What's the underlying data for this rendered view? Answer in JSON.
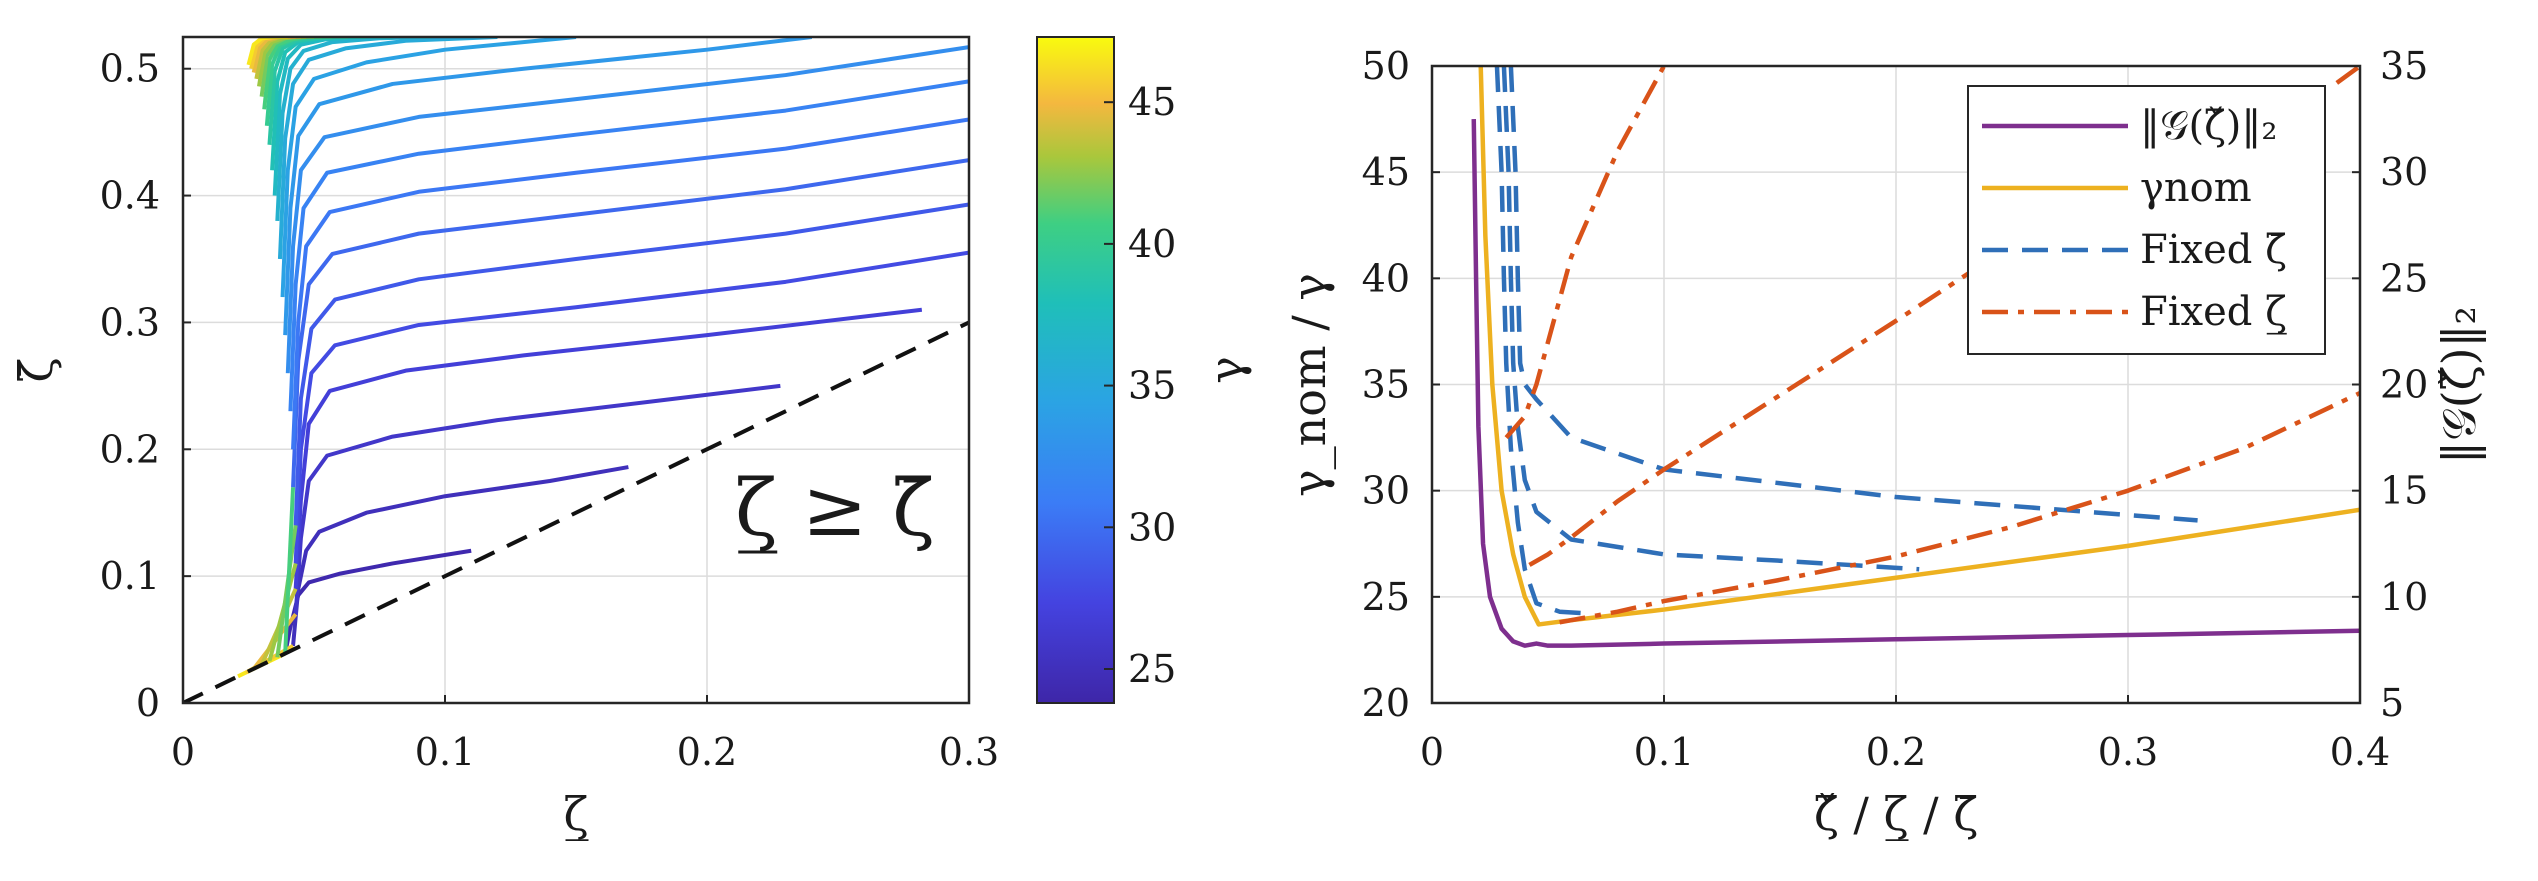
{
  "chart_data": [
    {
      "type": "line",
      "xlabel": "ζ̲",
      "ylabel": "ζ̄",
      "xlim": [
        0,
        0.3
      ],
      "ylim": [
        0,
        0.525
      ],
      "xticks": [
        0,
        0.1,
        0.2,
        0.3
      ],
      "yticks": [
        0,
        0.1,
        0.2,
        0.3,
        0.4,
        0.5
      ],
      "xtick_labels": [
        "0",
        "0.1",
        "0.2",
        "0.3"
      ],
      "ytick_labels": [
        "0",
        "0.1",
        "0.2",
        "0.3",
        "0.4",
        "0.5"
      ],
      "grid": true,
      "annotation": "ζ̲ ≥ ζ̄",
      "boundary_line": {
        "x": [
          0,
          0.3
        ],
        "y": [
          0,
          0.3
        ],
        "style": "dashed",
        "color": "#111111"
      },
      "colorbar": {
        "label": "γ",
        "range": [
          23.8,
          47.3
        ],
        "ticks": [
          25,
          30,
          35,
          40,
          45
        ],
        "tick_labels": [
          "25",
          "30",
          "35",
          "40",
          "45"
        ]
      },
      "series": [
        {
          "gamma": 24.2,
          "x": [
            0.039,
            0.041,
            0.044,
            0.048,
            0.06,
            0.08,
            0.11
          ],
          "y": [
            0.039,
            0.06,
            0.085,
            0.095,
            0.102,
            0.11,
            0.12
          ]
        },
        {
          "gamma": 25.0,
          "x": [
            0.042,
            0.044,
            0.047,
            0.052,
            0.07,
            0.1,
            0.14,
            0.17
          ],
          "y": [
            0.045,
            0.09,
            0.12,
            0.135,
            0.15,
            0.163,
            0.175,
            0.186
          ]
        },
        {
          "gamma": 25.9,
          "x": [
            0.043,
            0.045,
            0.048,
            0.055,
            0.08,
            0.12,
            0.18,
            0.228
          ],
          "y": [
            0.07,
            0.13,
            0.175,
            0.195,
            0.21,
            0.223,
            0.238,
            0.25
          ]
        },
        {
          "gamma": 26.8,
          "x": [
            0.043,
            0.045,
            0.048,
            0.056,
            0.085,
            0.13,
            0.2,
            0.282
          ],
          "y": [
            0.09,
            0.16,
            0.22,
            0.246,
            0.262,
            0.274,
            0.29,
            0.31
          ]
        },
        {
          "gamma": 27.8,
          "x": [
            0.043,
            0.045,
            0.049,
            0.058,
            0.09,
            0.15,
            0.23,
            0.3
          ],
          "y": [
            0.11,
            0.2,
            0.26,
            0.282,
            0.298,
            0.312,
            0.332,
            0.355
          ]
        },
        {
          "gamma": 28.7,
          "x": [
            0.043,
            0.045,
            0.049,
            0.058,
            0.09,
            0.15,
            0.23,
            0.3
          ],
          "y": [
            0.14,
            0.24,
            0.295,
            0.318,
            0.334,
            0.35,
            0.37,
            0.393
          ]
        },
        {
          "gamma": 29.6,
          "x": [
            0.042,
            0.044,
            0.048,
            0.057,
            0.09,
            0.15,
            0.23,
            0.3
          ],
          "y": [
            0.17,
            0.27,
            0.33,
            0.354,
            0.37,
            0.385,
            0.405,
            0.428
          ]
        },
        {
          "gamma": 30.6,
          "x": [
            0.042,
            0.044,
            0.047,
            0.056,
            0.09,
            0.15,
            0.23,
            0.3
          ],
          "y": [
            0.2,
            0.3,
            0.36,
            0.387,
            0.403,
            0.418,
            0.437,
            0.46
          ]
        },
        {
          "gamma": 31.5,
          "x": [
            0.041,
            0.043,
            0.046,
            0.055,
            0.09,
            0.15,
            0.23,
            0.3
          ],
          "y": [
            0.23,
            0.33,
            0.39,
            0.418,
            0.433,
            0.448,
            0.467,
            0.49
          ]
        },
        {
          "gamma": 32.5,
          "x": [
            0.04,
            0.042,
            0.045,
            0.054,
            0.09,
            0.15,
            0.23,
            0.3
          ],
          "y": [
            0.26,
            0.36,
            0.42,
            0.446,
            0.462,
            0.476,
            0.495,
            0.517
          ]
        },
        {
          "gamma": 33.4,
          "x": [
            0.039,
            0.041,
            0.044,
            0.052,
            0.08,
            0.13,
            0.2,
            0.24
          ],
          "y": [
            0.29,
            0.39,
            0.447,
            0.472,
            0.488,
            0.5,
            0.515,
            0.525
          ]
        },
        {
          "gamma": 34.3,
          "x": [
            0.038,
            0.04,
            0.043,
            0.05,
            0.07,
            0.1,
            0.15
          ],
          "y": [
            0.32,
            0.42,
            0.47,
            0.492,
            0.505,
            0.515,
            0.525
          ]
        },
        {
          "gamma": 35.3,
          "x": [
            0.037,
            0.039,
            0.042,
            0.048,
            0.062,
            0.085,
            0.12
          ],
          "y": [
            0.35,
            0.445,
            0.488,
            0.507,
            0.516,
            0.522,
            0.525
          ]
        },
        {
          "gamma": 36.2,
          "x": [
            0.036,
            0.038,
            0.041,
            0.046,
            0.057,
            0.075,
            0.095
          ],
          "y": [
            0.38,
            0.465,
            0.5,
            0.514,
            0.521,
            0.524,
            0.525
          ]
        },
        {
          "gamma": 37.2,
          "x": [
            0.035,
            0.037,
            0.04,
            0.045,
            0.054,
            0.068,
            0.08
          ],
          "y": [
            0.4,
            0.48,
            0.508,
            0.519,
            0.523,
            0.525,
            0.525
          ]
        },
        {
          "gamma": 38.1,
          "x": [
            0.034,
            0.036,
            0.039,
            0.044,
            0.052,
            0.062,
            0.07
          ],
          "y": [
            0.42,
            0.49,
            0.513,
            0.521,
            0.524,
            0.525,
            0.525
          ]
        },
        {
          "gamma": 39.0,
          "x": [
            0.033,
            0.035,
            0.038,
            0.043,
            0.05,
            0.058,
            0.063
          ],
          "y": [
            0.44,
            0.498,
            0.516,
            0.522,
            0.524,
            0.525,
            0.525
          ]
        },
        {
          "gamma": 40.0,
          "x": [
            0.032,
            0.034,
            0.037,
            0.042,
            0.048,
            0.054,
            0.057
          ],
          "y": [
            0.455,
            0.503,
            0.518,
            0.523,
            0.525,
            0.525,
            0.525
          ]
        },
        {
          "gamma": 40.9,
          "x": [
            0.031,
            0.033,
            0.036,
            0.041,
            0.046,
            0.051,
            0.053
          ],
          "y": [
            0.468,
            0.507,
            0.519,
            0.523,
            0.525,
            0.525,
            0.525
          ]
        },
        {
          "gamma": 41.9,
          "x": [
            0.03,
            0.032,
            0.035,
            0.039,
            0.044,
            0.048,
            0.05
          ],
          "y": [
            0.478,
            0.51,
            0.52,
            0.524,
            0.525,
            0.525,
            0.525
          ]
        },
        {
          "gamma": 42.8,
          "x": [
            0.029,
            0.031,
            0.034,
            0.038,
            0.042,
            0.046,
            0.047
          ],
          "y": [
            0.486,
            0.512,
            0.521,
            0.524,
            0.525,
            0.525,
            0.525
          ]
        },
        {
          "gamma": 43.7,
          "x": [
            0.028,
            0.03,
            0.033,
            0.037,
            0.041,
            0.044,
            0.045
          ],
          "y": [
            0.492,
            0.514,
            0.522,
            0.525,
            0.525,
            0.525,
            0.525
          ]
        },
        {
          "gamma": 44.7,
          "x": [
            0.027,
            0.029,
            0.032,
            0.036,
            0.04,
            0.042,
            0.043
          ],
          "y": [
            0.497,
            0.516,
            0.523,
            0.525,
            0.525,
            0.525,
            0.525
          ]
        },
        {
          "gamma": 45.6,
          "x": [
            0.026,
            0.028,
            0.031,
            0.035,
            0.038,
            0.04,
            0.041
          ],
          "y": [
            0.5,
            0.518,
            0.524,
            0.525,
            0.525,
            0.525,
            0.525
          ]
        },
        {
          "gamma": 46.6,
          "x": [
            0.025,
            0.027,
            0.03,
            0.034,
            0.037,
            0.039,
            0.04
          ],
          "y": [
            0.503,
            0.519,
            0.524,
            0.525,
            0.525,
            0.525,
            0.525
          ]
        }
      ],
      "low_branch": {
        "x_start": [
          0.021,
          0.024,
          0.027,
          0.03,
          0.033,
          0.036,
          0.039
        ],
        "y_start": [
          0.021,
          0.024,
          0.027,
          0.03,
          0.033,
          0.036,
          0.039
        ]
      }
    },
    {
      "type": "line",
      "xlabel": "ζ̌ / ζ̲ / ζ̄",
      "ylabel": "γ_nom / γ",
      "y2label": "‖𝒢(ζ̌)‖₂",
      "xlim": [
        0,
        0.4
      ],
      "ylim": [
        20,
        50
      ],
      "y2lim": [
        5,
        35
      ],
      "xticks": [
        0,
        0.1,
        0.2,
        0.3,
        0.4
      ],
      "yticks": [
        20,
        25,
        30,
        35,
        40,
        45,
        50
      ],
      "y2ticks": [
        5,
        10,
        15,
        20,
        25,
        30,
        35
      ],
      "xtick_labels": [
        "0",
        "0.1",
        "0.2",
        "0.3",
        "0.4"
      ],
      "ytick_labels": [
        "20",
        "25",
        "30",
        "35",
        "40",
        "45",
        "50"
      ],
      "y2tick_labels": [
        "5",
        "10",
        "15",
        "20",
        "25",
        "30",
        "35"
      ],
      "grid": true,
      "legend_placement": "top-right",
      "legend": [
        {
          "label": "‖𝒢(ζ̌)‖₂",
          "color": "#7e2f8e",
          "style": "solid"
        },
        {
          "label": "γnom",
          "color": "#edb120",
          "style": "solid"
        },
        {
          "label": "Fixed ζ̄",
          "color": "#2f6fb8",
          "style": "dashed"
        },
        {
          "label": "Fixed ζ̲",
          "color": "#d95319",
          "style": "dashdot"
        }
      ],
      "series": [
        {
          "name": "‖𝒢(ζ̌)‖₂",
          "axis": "right",
          "color": "#7e2f8e",
          "style": "solid",
          "x": [
            0.018,
            0.019,
            0.02,
            0.022,
            0.025,
            0.03,
            0.035,
            0.04,
            0.045,
            0.05,
            0.06,
            0.1,
            0.2,
            0.3,
            0.4
          ],
          "y": [
            32.5,
            25.0,
            18.0,
            12.5,
            10.0,
            8.5,
            7.9,
            7.7,
            7.8,
            7.7,
            7.7,
            7.8,
            8.0,
            8.2,
            8.4
          ]
        },
        {
          "name": "γnom",
          "axis": "left",
          "color": "#edb120",
          "style": "solid",
          "x": [
            0.021,
            0.023,
            0.026,
            0.03,
            0.035,
            0.04,
            0.046,
            0.06,
            0.1,
            0.2,
            0.3,
            0.4
          ],
          "y": [
            50.0,
            42.0,
            35.0,
            30.0,
            27.0,
            25.0,
            23.7,
            23.9,
            24.4,
            25.9,
            27.4,
            29.1
          ]
        },
        {
          "name": "Fixed ζ̄",
          "axis": "left",
          "color": "#2f6fb8",
          "style": "dashed",
          "x": [
            0.034,
            0.036,
            0.037,
            0.038,
            0.04,
            0.045,
            0.06,
            0.1,
            0.2,
            0.33
          ],
          "y": [
            50.0,
            45.0,
            40.0,
            36.0,
            35.0,
            34.3,
            32.5,
            31.0,
            29.7,
            28.6
          ]
        },
        {
          "name": "Fixed ζ̄",
          "axis": "left",
          "color": "#2f6fb8",
          "style": "dashed",
          "x": [
            0.031,
            0.033,
            0.034,
            0.035,
            0.037,
            0.04,
            0.045,
            0.06,
            0.1,
            0.15,
            0.21
          ],
          "y": [
            50.0,
            45.0,
            40.0,
            36.0,
            33.0,
            30.5,
            29.0,
            27.7,
            27.0,
            26.7,
            26.3
          ]
        },
        {
          "name": "Fixed ζ̄",
          "axis": "left",
          "color": "#2f6fb8",
          "style": "dashed",
          "x": [
            0.028,
            0.03,
            0.031,
            0.032,
            0.034,
            0.037,
            0.04,
            0.045,
            0.055,
            0.07
          ],
          "y": [
            50.0,
            45.0,
            40.0,
            36.0,
            32.0,
            28.5,
            26.3,
            24.7,
            24.3,
            24.2
          ]
        },
        {
          "name": "Fixed ζ̲",
          "axis": "left",
          "color": "#d95319",
          "style": "dashdot",
          "x": [
            0.032,
            0.04,
            0.045,
            0.05,
            0.06,
            0.08,
            0.1
          ],
          "y": [
            32.5,
            33.5,
            35.0,
            37.0,
            41.0,
            46.0,
            50.0
          ]
        },
        {
          "name": "Fixed ζ̲",
          "axis": "left",
          "color": "#d95319",
          "style": "dashdot",
          "x": [
            0.042,
            0.05,
            0.06,
            0.08,
            0.1,
            0.15,
            0.2,
            0.27
          ],
          "y": [
            26.5,
            27.0,
            27.8,
            29.5,
            31.0,
            34.5,
            38.0,
            43.0
          ]
        },
        {
          "name": "Fixed ζ̲",
          "axis": "left",
          "color": "#d95319",
          "style": "dashdot",
          "x": [
            0.055,
            0.08,
            0.1,
            0.15,
            0.2,
            0.25,
            0.3,
            0.35,
            0.4
          ],
          "y": [
            23.8,
            24.3,
            24.8,
            25.8,
            26.9,
            28.3,
            30.0,
            32.0,
            34.6
          ]
        },
        {
          "name": "Fixed ζ̲",
          "axis": "left",
          "color": "#d95319",
          "style": "dashdot",
          "x": [
            0.39,
            0.4
          ],
          "y": [
            49.2,
            50.0
          ]
        }
      ]
    }
  ]
}
